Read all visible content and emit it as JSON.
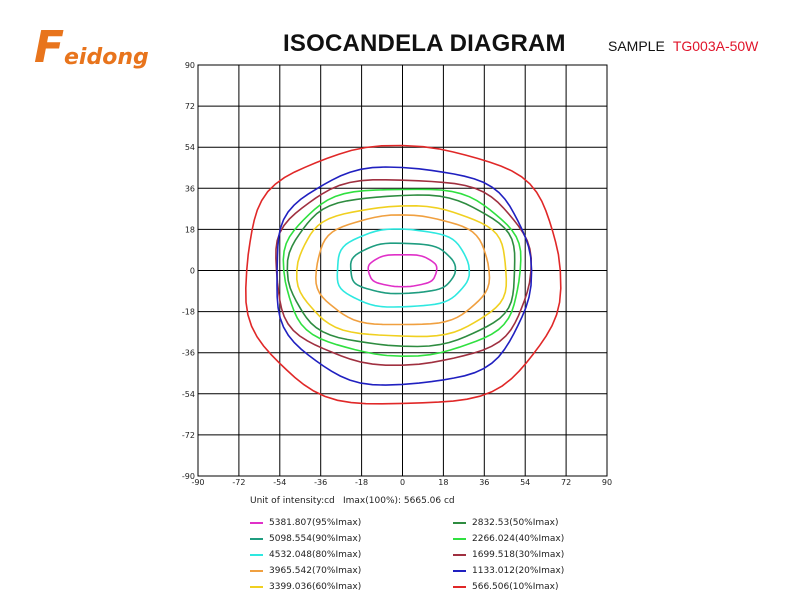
{
  "header": {
    "logo_text": "Feidong",
    "title": "ISOCANDELA DIAGRAM",
    "sample_label": "SAMPLE",
    "sample_model": "TG003A-50W"
  },
  "notes": {
    "unit": "Unit of intensity:cd",
    "imax": "Imax(100%): 5665.06 cd"
  },
  "colors": {
    "brand": "#e8741c",
    "model": "#e0142a"
  },
  "chart_data": {
    "type": "line",
    "title": "ISOCANDELA DIAGRAM",
    "xlim": [
      -90,
      90
    ],
    "ylim": [
      -90,
      90
    ],
    "x_ticks": [
      -90,
      -72,
      -54,
      -36,
      -18,
      0,
      18,
      36,
      54,
      72,
      90
    ],
    "y_ticks": [
      90,
      72,
      54,
      36,
      18,
      0,
      -18,
      -36,
      -54,
      -72,
      -90
    ],
    "x_tick_labels": [
      "-90",
      "-72",
      "-54",
      "-36",
      "-18",
      "0",
      "18",
      "36",
      "54",
      "72",
      "90"
    ],
    "y_tick_labels": [
      "90",
      "72",
      "54",
      "36",
      "18",
      "0",
      "-18",
      "-36",
      "-54",
      "-72",
      "-90"
    ],
    "grid": true,
    "contour_semi_axes": "contours approximated as ellipses centered at (0,0); a = horizontal semi-axis (deg), b_top / b_bottom = vertical semi-axes (deg)",
    "series": [
      {
        "name": "5381.807(95%Imax)",
        "color": "#e030c8",
        "a": 15,
        "b_top": 7,
        "b_bottom": 7
      },
      {
        "name": "5098.554(90%Imax)",
        "color": "#1f9d80",
        "a": 23,
        "b_top": 12,
        "b_bottom": 10
      },
      {
        "name": "4532.048(80%Imax)",
        "color": "#2ee8e0",
        "a": 29,
        "b_top": 18,
        "b_bottom": 16
      },
      {
        "name": "3965.542(70%Imax)",
        "color": "#f0a040",
        "a": 38,
        "b_top": 24,
        "b_bottom": 24
      },
      {
        "name": "3399.036(60%Imax)",
        "color": "#f0d020",
        "a": 46,
        "b_top": 28,
        "b_bottom": 29
      },
      {
        "name": "2832.53(50%Imax)",
        "color": "#2e8c40",
        "a": 50,
        "b_top": 33,
        "b_bottom": 33
      },
      {
        "name": "2266.024(40%Imax)",
        "color": "#30e040",
        "a": 52,
        "b_top": 36,
        "b_bottom": 37
      },
      {
        "name": "1699.518(30%Imax)",
        "color": "#a03040",
        "a": 56,
        "b_top": 40,
        "b_bottom": 41
      },
      {
        "name": "1133.012(20%Imax)",
        "color": "#2020c0",
        "a": 56,
        "b_top": 45,
        "b_bottom": 50
      },
      {
        "name": "566.506(10%Imax)",
        "color": "#e02828",
        "a": 69,
        "b_top": 54,
        "b_bottom": 59
      }
    ],
    "legend": {
      "left": [
        "5381.807(95%Imax)",
        "5098.554(90%Imax)",
        "4532.048(80%Imax)",
        "3965.542(70%Imax)",
        "3399.036(60%Imax)"
      ],
      "right": [
        "2832.53(50%Imax)",
        "2266.024(40%Imax)",
        "1699.518(30%Imax)",
        "1133.012(20%Imax)",
        "566.506(10%Imax)"
      ],
      "placement": "bottom"
    }
  }
}
